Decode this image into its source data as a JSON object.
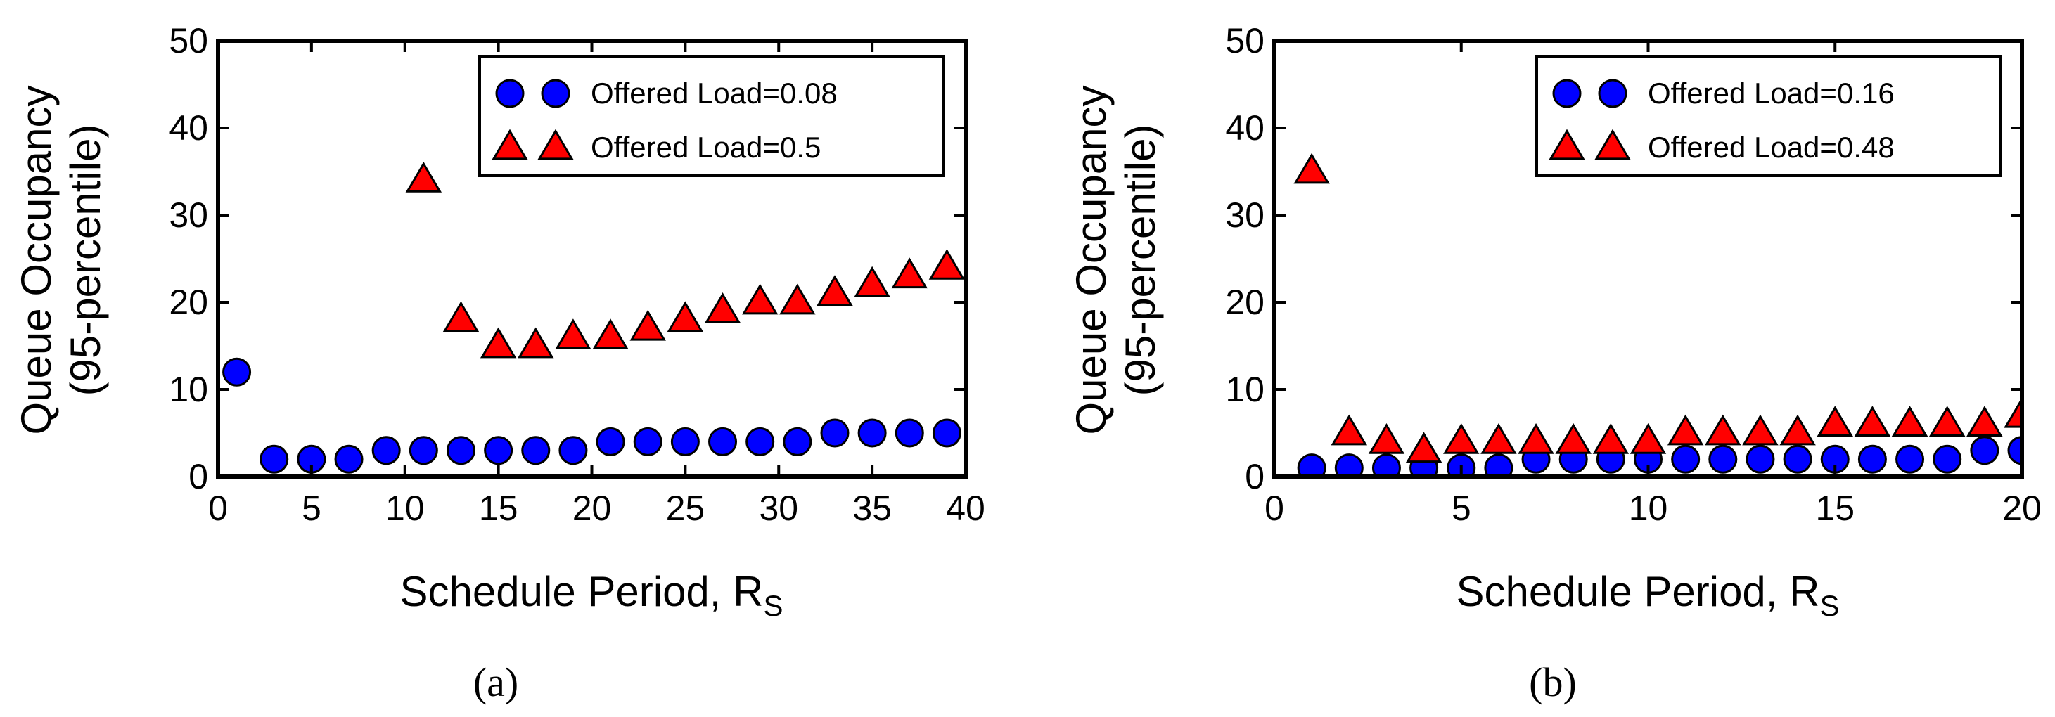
{
  "chart_data": [
    {
      "type": "scatter",
      "title": "",
      "caption": "(a)",
      "xlabel": "Schedule Period, R",
      "xlabel_subscript": "S",
      "ylabel": "Queue Occupancy",
      "ylabel_line2": "(95-percentile)",
      "xlim": [
        0,
        40
      ],
      "ylim": [
        0,
        50
      ],
      "xticks": [
        0,
        5,
        10,
        15,
        20,
        25,
        30,
        35,
        40
      ],
      "yticks": [
        0,
        10,
        20,
        30,
        40,
        50
      ],
      "grid": false,
      "legend_position": "top-right",
      "series": [
        {
          "name": "Offered Load=0.08",
          "marker": "circle",
          "color": "#0000ff",
          "x": [
            1,
            3,
            5,
            7,
            9,
            11,
            13,
            15,
            17,
            19,
            21,
            23,
            25,
            27,
            29,
            31,
            33,
            35,
            37,
            39
          ],
          "y": [
            12,
            2,
            2,
            2,
            3,
            3,
            3,
            3,
            3,
            3,
            4,
            4,
            4,
            4,
            4,
            4,
            5,
            5,
            5,
            5
          ]
        },
        {
          "name": "Offered Load=0.5",
          "marker": "triangle",
          "color": "#ff0000",
          "x": [
            11,
            13,
            15,
            17,
            19,
            21,
            23,
            25,
            27,
            29,
            31,
            33,
            35,
            37,
            39
          ],
          "y": [
            34,
            18,
            15,
            15,
            16,
            16,
            17,
            18,
            19,
            20,
            20,
            21,
            22,
            23,
            24
          ]
        }
      ]
    },
    {
      "type": "scatter",
      "title": "",
      "caption": "(b)",
      "xlabel": "Schedule Period, R",
      "xlabel_subscript": "S",
      "ylabel": "Queue Occupancy",
      "ylabel_line2": "(95-percentile)",
      "xlim": [
        0,
        20
      ],
      "ylim": [
        0,
        50
      ],
      "xticks": [
        0,
        5,
        10,
        15,
        20
      ],
      "yticks": [
        0,
        10,
        20,
        30,
        40,
        50
      ],
      "grid": false,
      "legend_position": "top-right",
      "series": [
        {
          "name": "Offered Load=0.16",
          "marker": "circle",
          "color": "#0000ff",
          "x": [
            1,
            2,
            3,
            4,
            5,
            6,
            7,
            8,
            9,
            10,
            11,
            12,
            13,
            14,
            15,
            16,
            17,
            18,
            19,
            20
          ],
          "y": [
            1,
            1,
            1,
            1,
            1,
            1,
            2,
            2,
            2,
            2,
            2,
            2,
            2,
            2,
            2,
            2,
            2,
            2,
            3,
            3
          ]
        },
        {
          "name": "Offered Load=0.48",
          "marker": "triangle",
          "color": "#ff0000",
          "x": [
            1,
            2,
            3,
            4,
            5,
            6,
            7,
            8,
            9,
            10,
            11,
            12,
            13,
            14,
            15,
            16,
            17,
            18,
            19,
            20
          ],
          "y": [
            35,
            5,
            4,
            3,
            4,
            4,
            4,
            4,
            4,
            4,
            5,
            5,
            5,
            5,
            6,
            6,
            6,
            6,
            6,
            7
          ]
        }
      ]
    }
  ]
}
